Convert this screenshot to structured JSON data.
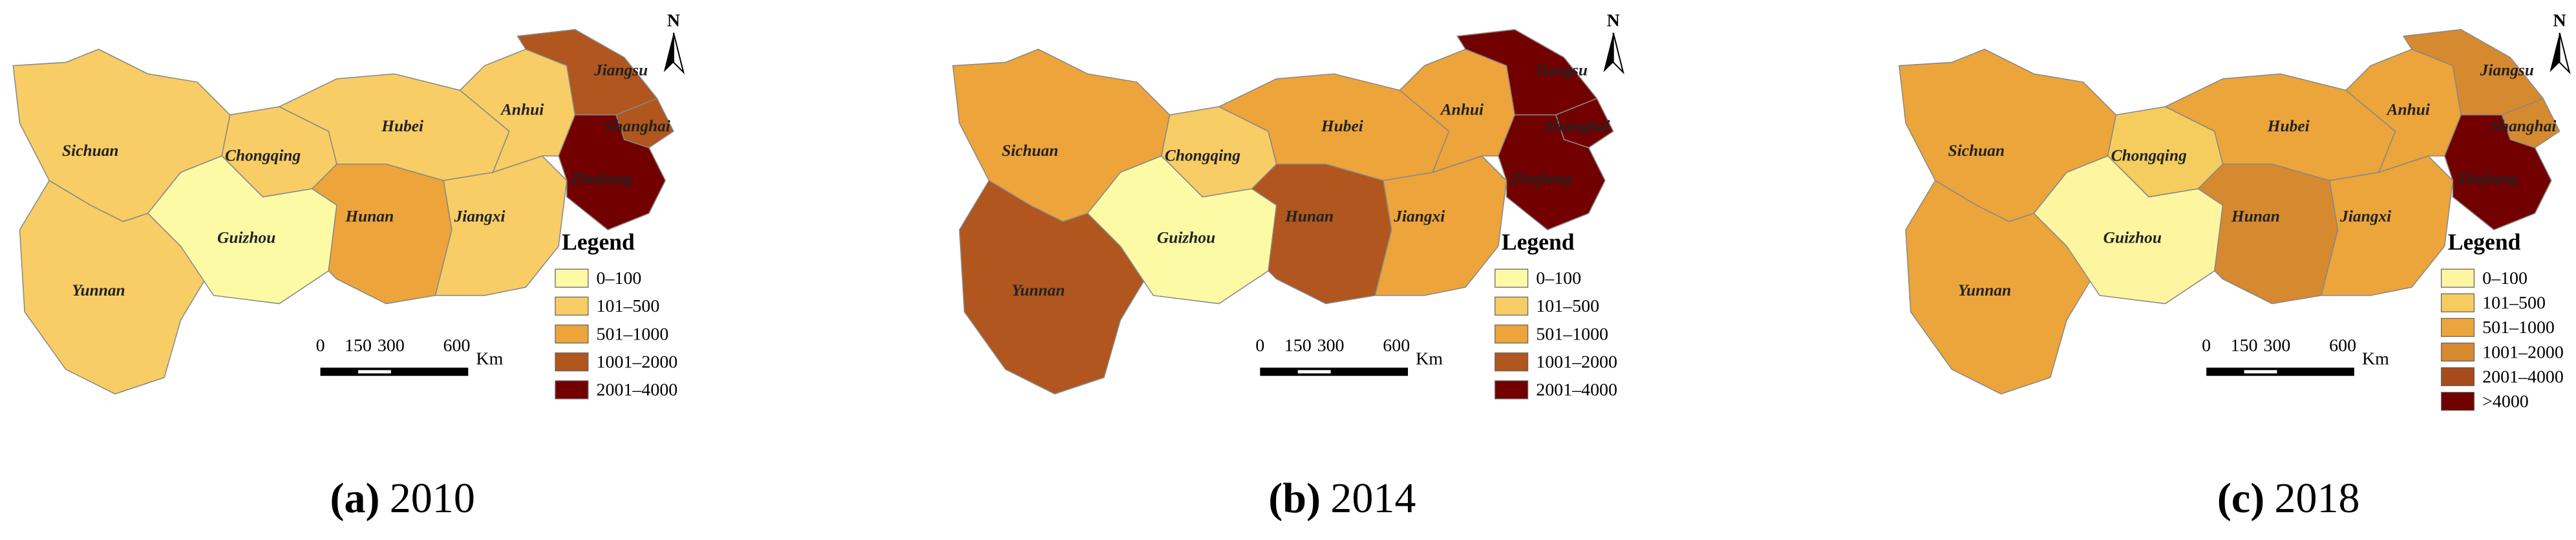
{
  "panels": [
    {
      "caption_label": "(a)",
      "caption_year": "2010",
      "north": "N",
      "legend_title": "Legend",
      "scale_labels": [
        "0",
        "150",
        "300",
        "600",
        "Km"
      ],
      "legend": [
        {
          "label": "0–100",
          "color": "#fdfaa6"
        },
        {
          "label": "101–500",
          "color": "#f8cd66"
        },
        {
          "label": "501–1000",
          "color": "#eda43a"
        },
        {
          "label": "1001–2000",
          "color": "#b0561e"
        },
        {
          "label": "2001–4000",
          "color": "#730000"
        }
      ],
      "provinces": [
        {
          "name": "Sichuan",
          "fill": "#f8cd66"
        },
        {
          "name": "Yunnan",
          "fill": "#f8cd66"
        },
        {
          "name": "Chongqing",
          "fill": "#f8cd66"
        },
        {
          "name": "Guizhou",
          "fill": "#fdfaa6"
        },
        {
          "name": "Hubei",
          "fill": "#f8cd66"
        },
        {
          "name": "Hunan",
          "fill": "#eda43a"
        },
        {
          "name": "Jiangxi",
          "fill": "#f8cd66"
        },
        {
          "name": "Anhui",
          "fill": "#f8cd66"
        },
        {
          "name": "Jiangsu",
          "fill": "#b0561e"
        },
        {
          "name": "Shanghai",
          "fill": "#b0561e"
        },
        {
          "name": "Zhejiang",
          "fill": "#730000"
        }
      ]
    },
    {
      "caption_label": "(b)",
      "caption_year": "2014",
      "north": "N",
      "legend_title": "Legend",
      "scale_labels": [
        "0",
        "150",
        "300",
        "600",
        "Km"
      ],
      "legend": [
        {
          "label": "0–100",
          "color": "#fdfaa6"
        },
        {
          "label": "101–500",
          "color": "#f8cd66"
        },
        {
          "label": "501–1000",
          "color": "#eda43a"
        },
        {
          "label": "1001–2000",
          "color": "#b0561e"
        },
        {
          "label": "2001–4000",
          "color": "#730000"
        }
      ],
      "provinces": [
        {
          "name": "Sichuan",
          "fill": "#eda43a"
        },
        {
          "name": "Yunnan",
          "fill": "#b0561e"
        },
        {
          "name": "Chongqing",
          "fill": "#f8cd66"
        },
        {
          "name": "Guizhou",
          "fill": "#fdfaa6"
        },
        {
          "name": "Hubei",
          "fill": "#eda43a"
        },
        {
          "name": "Hunan",
          "fill": "#b0561e"
        },
        {
          "name": "Jiangxi",
          "fill": "#eda43a"
        },
        {
          "name": "Anhui",
          "fill": "#eda43a"
        },
        {
          "name": "Jiangsu",
          "fill": "#730000"
        },
        {
          "name": "Shanghai",
          "fill": "#730000"
        },
        {
          "name": "Zhejiang",
          "fill": "#730000"
        }
      ]
    },
    {
      "caption_label": "(c)",
      "caption_year": "2018",
      "north": "N",
      "legend_title": "Legend",
      "scale_labels": [
        "0",
        "150",
        "300",
        "600",
        "Km"
      ],
      "legend": [
        {
          "label": "0–100",
          "color": "#fdf5a0"
        },
        {
          "label": "101–500",
          "color": "#f5cc5e"
        },
        {
          "label": "501–1000",
          "color": "#eba53a"
        },
        {
          "label": "1001–2000",
          "color": "#d58a30"
        },
        {
          "label": "2001–4000",
          "color": "#a84b1a"
        },
        {
          "label": ">4000",
          "color": "#730000"
        }
      ],
      "provinces": [
        {
          "name": "Sichuan",
          "fill": "#eba53a"
        },
        {
          "name": "Yunnan",
          "fill": "#eba53a"
        },
        {
          "name": "Chongqing",
          "fill": "#f5cc5e"
        },
        {
          "name": "Guizhou",
          "fill": "#fdf5a0"
        },
        {
          "name": "Hubei",
          "fill": "#eba53a"
        },
        {
          "name": "Hunan",
          "fill": "#d58a30"
        },
        {
          "name": "Jiangxi",
          "fill": "#eba53a"
        },
        {
          "name": "Anhui",
          "fill": "#eba53a"
        },
        {
          "name": "Jiangsu",
          "fill": "#d58a30"
        },
        {
          "name": "Shanghai",
          "fill": "#d58a30"
        },
        {
          "name": "Zhejiang",
          "fill": "#730000"
        }
      ]
    }
  ]
}
